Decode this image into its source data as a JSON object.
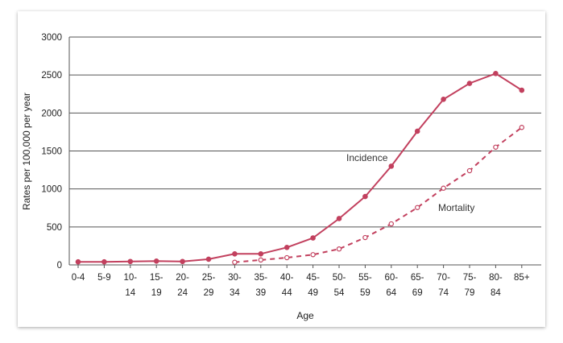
{
  "chart_data": {
    "type": "line",
    "title": "",
    "xlabel": "Age",
    "ylabel": "Rates per 100,000 per year",
    "ylim": [
      0,
      3000
    ],
    "yticks": [
      "0",
      "500",
      "1000",
      "1500",
      "2000",
      "2500",
      "3000"
    ],
    "categories": [
      [
        "0-4",
        ""
      ],
      [
        "5-9",
        ""
      ],
      [
        "10-",
        "14"
      ],
      [
        "15-",
        "19"
      ],
      [
        "20-",
        "24"
      ],
      [
        "25-",
        "29"
      ],
      [
        "30-",
        "34"
      ],
      [
        "35-",
        "39"
      ],
      [
        "40-",
        "44"
      ],
      [
        "45-",
        "49"
      ],
      [
        "50-",
        "54"
      ],
      [
        "55-",
        "59"
      ],
      [
        "60-",
        "64"
      ],
      [
        "65-",
        "69"
      ],
      [
        "70-",
        "74"
      ],
      [
        "75-",
        "79"
      ],
      [
        "80-",
        "84"
      ],
      [
        "85+",
        ""
      ]
    ],
    "grid": true,
    "series": [
      {
        "name": "Incidence",
        "style": "solid",
        "marker": "filled-circle",
        "color": "#c2405e",
        "values": [
          40,
          40,
          45,
          50,
          45,
          75,
          145,
          145,
          230,
          355,
          610,
          900,
          1300,
          1760,
          2180,
          2390,
          2520,
          2300
        ]
      },
      {
        "name": "Mortality",
        "style": "dashed",
        "marker": "open-circle",
        "color": "#c2405e",
        "values": [
          null,
          null,
          null,
          null,
          null,
          null,
          35,
          65,
          95,
          135,
          210,
          360,
          540,
          755,
          1010,
          1240,
          1550,
          1810
        ]
      }
    ]
  }
}
